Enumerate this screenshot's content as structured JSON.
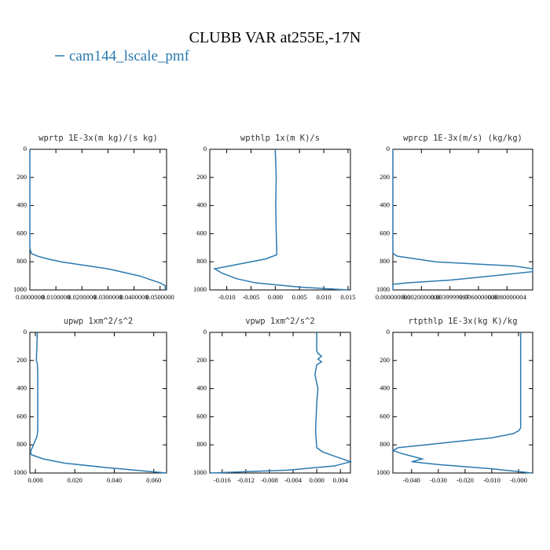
{
  "title": "CLUBB VAR at255E,-17N",
  "legend": "cam144_lscale_pmf",
  "legend_color": "#2a7ab0",
  "chart_data": [
    {
      "type": "line",
      "title": "wprtp  1E-3x(m kg)/(s kg)",
      "color": "#2a7ab0",
      "y": [
        0,
        200,
        400,
        600,
        700,
        740,
        760,
        780,
        800,
        850,
        900,
        950,
        970,
        1000
      ],
      "values": [
        0,
        0,
        0,
        0,
        0,
        0.0005,
        0.003,
        0.007,
        0.012,
        0.03,
        0.042,
        0.05,
        0.052,
        0.052
      ],
      "xlim": [
        0,
        0.0525
      ],
      "xticks": [
        {
          "value": 0,
          "label": "0.0000000"
        },
        {
          "value": 0.01,
          "label": "0.0100000"
        },
        {
          "value": 0.02,
          "label": "0.0200000"
        },
        {
          "value": 0.03,
          "label": "0.0300000"
        },
        {
          "value": 0.04,
          "label": "0.0400000"
        },
        {
          "value": 0.05,
          "label": "0.0500000"
        }
      ],
      "ylim": [
        1000,
        0
      ],
      "yticks": [
        0,
        200,
        400,
        600,
        800,
        1000
      ]
    },
    {
      "type": "line",
      "title": "wpthlp  1x(m K)/s",
      "color": "#2a7ab0",
      "y": [
        0,
        200,
        400,
        600,
        700,
        750,
        780,
        820,
        850,
        880,
        920,
        950,
        980,
        1000
      ],
      "values": [
        0,
        0.0002,
        0.0001,
        0.0002,
        0.0003,
        0.0003,
        -0.002,
        -0.008,
        -0.0125,
        -0.011,
        -0.008,
        -0.004,
        0.005,
        0.015
      ],
      "xlim": [
        -0.0135,
        0.0155
      ],
      "xticks": [
        {
          "value": -0.01,
          "label": "-0.010"
        },
        {
          "value": -0.005,
          "label": "-0.005"
        },
        {
          "value": 0,
          "label": "0.000"
        },
        {
          "value": 0.005,
          "label": "0.005"
        },
        {
          "value": 0.01,
          "label": "0.010"
        },
        {
          "value": 0.015,
          "label": "0.015"
        }
      ],
      "ylim": [
        1000,
        0
      ],
      "yticks": [
        0,
        200,
        400,
        600,
        800,
        1000
      ]
    },
    {
      "type": "line",
      "title": "wprcp  1E-3x(m/s) (kg/kg)",
      "color": "#2a7ab0",
      "y": [
        0,
        200,
        400,
        600,
        740,
        760,
        800,
        830,
        850,
        870,
        900,
        930,
        950,
        960,
        1000
      ],
      "values": [
        0,
        0,
        0,
        0,
        0,
        0.0003,
        0.003,
        0.0085,
        0.0098,
        0.0098,
        0.007,
        0.004,
        0.001,
        0,
        0
      ],
      "xlim": [
        0,
        0.0098
      ],
      "xticks": [
        {
          "value": 0,
          "label": "0.000000000"
        },
        {
          "value": 0.002,
          "label": "0.0020000000"
        },
        {
          "value": 0.004,
          "label": "0.0039999997"
        },
        {
          "value": 0.006,
          "label": "0.0060000000"
        },
        {
          "value": 0.008,
          "label": "0.0080000004"
        }
      ],
      "ylim": [
        1000,
        0
      ],
      "yticks": [
        0,
        200,
        400,
        600,
        800,
        1000
      ]
    },
    {
      "type": "line",
      "title": "upwp  1xm^2/s^2",
      "color": "#2a7ab0",
      "y": [
        0,
        200,
        220,
        300,
        700,
        740,
        800,
        850,
        870,
        900,
        930,
        960,
        1000
      ],
      "values": [
        0.001,
        0.0005,
        0.001,
        0.0012,
        0.0012,
        0.0008,
        -0.001,
        -0.0025,
        -0.002,
        0.004,
        0.015,
        0.035,
        0.0665
      ],
      "xlim": [
        -0.0028,
        0.0665
      ],
      "xticks": [
        {
          "value": 0,
          "label": "0.000"
        },
        {
          "value": 0.02,
          "label": "0.020"
        },
        {
          "value": 0.04,
          "label": "0.040"
        },
        {
          "value": 0.06,
          "label": "0.060"
        }
      ],
      "ylim": [
        1000,
        0
      ],
      "yticks": [
        0,
        200,
        400,
        600,
        800,
        1000
      ]
    },
    {
      "type": "line",
      "title": "vpwp  1xm^2/s^2",
      "color": "#2a7ab0",
      "y": [
        0,
        130,
        150,
        170,
        190,
        210,
        230,
        300,
        400,
        500,
        700,
        820,
        850,
        880,
        920,
        950,
        980,
        1000
      ],
      "values": [
        0,
        0,
        0.0002,
        0.0008,
        0.0002,
        0.0008,
        0,
        -0.0003,
        0.0002,
        0,
        -0.0002,
        0,
        0.001,
        0.003,
        0.0057,
        0.003,
        -0.005,
        -0.018
      ],
      "xlim": [
        -0.0181,
        0.0057
      ],
      "xticks": [
        {
          "value": -0.016,
          "label": "-0.016"
        },
        {
          "value": -0.012,
          "label": "-0.012"
        },
        {
          "value": -0.008,
          "label": "-0.008"
        },
        {
          "value": -0.004,
          "label": "-0.004"
        },
        {
          "value": 0,
          "label": "0.000"
        },
        {
          "value": 0.004,
          "label": "0.004"
        }
      ],
      "ylim": [
        1000,
        0
      ],
      "yticks": [
        0,
        200,
        400,
        600,
        800,
        1000
      ]
    },
    {
      "type": "line",
      "title": "rtpthlp  1E-3x(kg K)/kg",
      "color": "#2a7ab0",
      "y": [
        0,
        680,
        700,
        720,
        750,
        780,
        800,
        820,
        840,
        860,
        880,
        900,
        920,
        940,
        970,
        1000
      ],
      "values": [
        0.0008,
        0.0008,
        0,
        -0.002,
        -0.01,
        -0.025,
        -0.035,
        -0.045,
        -0.047,
        -0.044,
        -0.04,
        -0.036,
        -0.04,
        -0.03,
        -0.01,
        0.005
      ],
      "xlim": [
        -0.047,
        0.0053
      ],
      "xticks": [
        {
          "value": -0.04,
          "label": "-0.040"
        },
        {
          "value": -0.03,
          "label": "-0.030"
        },
        {
          "value": -0.02,
          "label": "-0.020"
        },
        {
          "value": -0.01,
          "label": "-0.010"
        },
        {
          "value": 0,
          "label": "-0.000"
        }
      ],
      "ylim": [
        1000,
        0
      ],
      "yticks": [
        0,
        200,
        400,
        600,
        800,
        1000
      ]
    }
  ]
}
